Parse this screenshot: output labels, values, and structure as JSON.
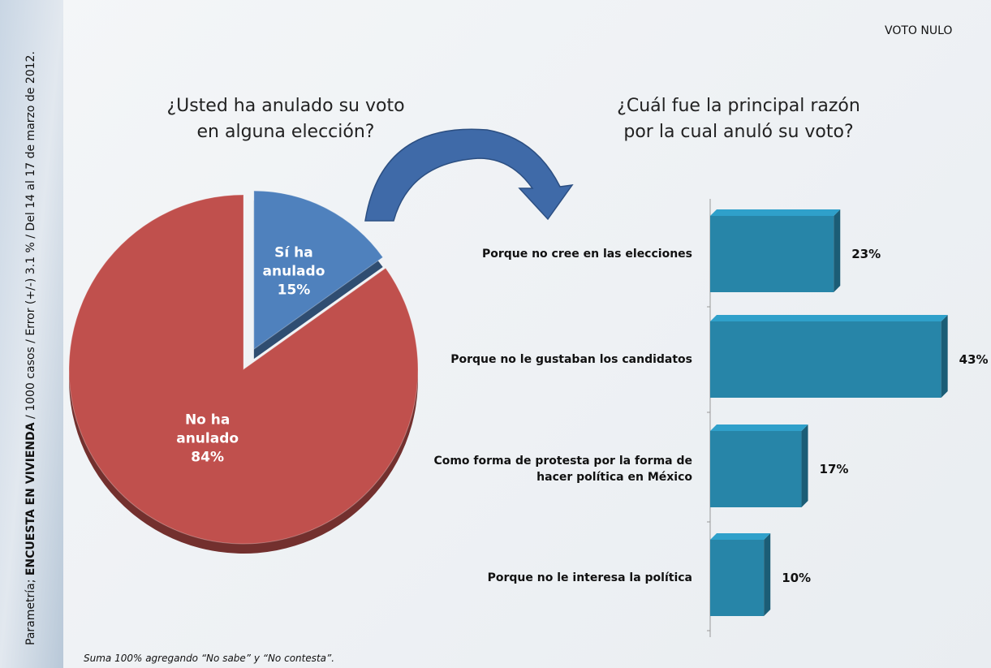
{
  "header": "VOTO NULO",
  "side_note": {
    "source": "Parametría; ",
    "survey": "ENCUESTA EN VIVIENDA",
    "details": " / 1000 casos / Error (+/-) 3.1 % / Del 14 al 17 de marzo de 2012."
  },
  "footnote": "Suma 100%  agregando “No sabe” y “No contesta”.",
  "chart_data": [
    {
      "type": "pie",
      "title": "¿Usted ha anulado su voto en alguna elección?",
      "categories": [
        "Sí ha anulado",
        "No ha anulado"
      ],
      "values": [
        15,
        84
      ],
      "value_labels": [
        "15%",
        "84%"
      ],
      "colors": [
        "#4f81bd",
        "#c0504d"
      ]
    },
    {
      "type": "bar",
      "orientation": "horizontal",
      "title": "¿Cuál fue la principal razón por la cual anuló su voto?",
      "categories": [
        "Porque no cree en las elecciones",
        "Porque no le gustaban los candidatos",
        "Como forma de protesta por la forma de hacer política en México",
        "Porque no le interesa la política"
      ],
      "values": [
        23,
        43,
        17,
        10
      ],
      "value_labels": [
        "23%",
        "43%",
        "17%",
        "10%"
      ],
      "color": "#2785a8"
    }
  ]
}
